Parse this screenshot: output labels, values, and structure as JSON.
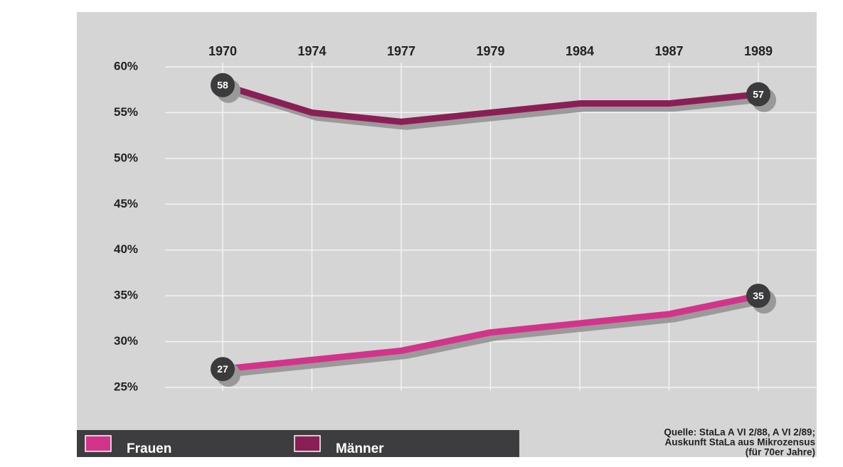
{
  "chart_data": {
    "type": "line",
    "categories": [
      "1970",
      "1974",
      "1977",
      "1979",
      "1984",
      "1987",
      "1989"
    ],
    "series": [
      {
        "name": "Frauen",
        "color": "#d2348a",
        "values": [
          27,
          28,
          29,
          31,
          32,
          33,
          35
        ]
      },
      {
        "name": "Männer",
        "color": "#8a1f56",
        "values": [
          58,
          55,
          54,
          55,
          56,
          56,
          57
        ]
      }
    ],
    "ylim": [
      25,
      60
    ],
    "yticks": [
      {
        "value": 25,
        "label": "25%"
      },
      {
        "value": 30,
        "label": "30%"
      },
      {
        "value": 35,
        "label": "35%"
      },
      {
        "value": 40,
        "label": "40%"
      },
      {
        "value": 45,
        "label": "45%"
      },
      {
        "value": 50,
        "label": "50%"
      },
      {
        "value": 55,
        "label": "55%"
      },
      {
        "value": 60,
        "label": "60%"
      }
    ],
    "grid": true,
    "source": [
      "Quelle: StaLa A VI 2/88, A VI 2/89;",
      "Auskunft StaLa aus Mikrozensus",
      "(für 70er Jahre)"
    ]
  }
}
